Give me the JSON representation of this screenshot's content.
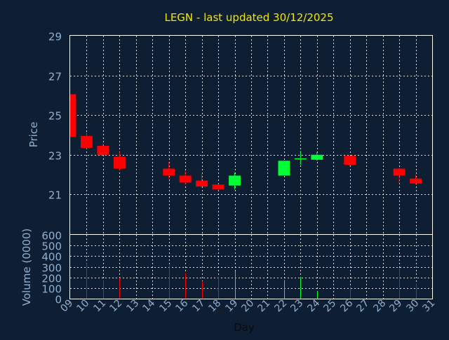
{
  "chart_data": [
    {
      "type": "candlestick",
      "title": "LEGN - last updated 30/12/2025",
      "ylabel": "Price",
      "ylim": [
        19,
        29
      ],
      "y_ticks": [
        21,
        23,
        25,
        27,
        29
      ],
      "grid": true,
      "up_color": "#00ff33",
      "down_color": "#ff0000",
      "candles": [
        {
          "day": 9,
          "open": 26.05,
          "close": 23.9,
          "high": 26.05,
          "low": 23.9
        },
        {
          "day": 10,
          "open": 23.95,
          "close": 23.35,
          "high": 24.15,
          "low": 23.3
        },
        {
          "day": 11,
          "open": 23.45,
          "close": 23.0,
          "high": 23.55,
          "low": 22.95
        },
        {
          "day": 12,
          "open": 22.9,
          "close": 22.3,
          "high": 23.15,
          "low": 22.2
        },
        {
          "day": 15,
          "open": 22.3,
          "close": 21.95,
          "high": 22.65,
          "low": 21.8
        },
        {
          "day": 16,
          "open": 21.95,
          "close": 21.6,
          "high": 22.2,
          "low": 21.5
        },
        {
          "day": 17,
          "open": 21.7,
          "close": 21.4,
          "high": 22.05,
          "low": 21.35
        },
        {
          "day": 18,
          "open": 21.5,
          "close": 21.25,
          "high": 21.55,
          "low": 21.2
        },
        {
          "day": 19,
          "open": 21.45,
          "close": 21.95,
          "high": 22.1,
          "low": 21.25
        },
        {
          "day": 22,
          "open": 21.95,
          "close": 22.7,
          "high": 22.7,
          "low": 21.95
        },
        {
          "day": 23,
          "open": 22.78,
          "close": 22.82,
          "high": 23.2,
          "low": 22.5
        },
        {
          "day": 24,
          "open": 22.75,
          "close": 23.0,
          "high": 23.15,
          "low": 22.7
        },
        {
          "day": 26,
          "open": 22.95,
          "close": 22.5,
          "high": 22.95,
          "low": 22.4
        },
        {
          "day": 29,
          "open": 22.3,
          "close": 21.95,
          "high": 22.35,
          "low": 21.55
        },
        {
          "day": 30,
          "open": 21.8,
          "close": 21.55,
          "high": 22.0,
          "low": 21.5
        }
      ]
    },
    {
      "type": "bar",
      "ylabel": "Volume (0000)",
      "xlabel": "Day",
      "ylim": [
        0,
        600
      ],
      "y_ticks": [
        0,
        100,
        200,
        300,
        400,
        500,
        600
      ],
      "x_ticks": [
        "09",
        "10",
        "11",
        "12",
        "13",
        "14",
        "15",
        "16",
        "17",
        "18",
        "19",
        "20",
        "21",
        "22",
        "23",
        "24",
        "25",
        "26",
        "27",
        "28",
        "29",
        "30",
        "31"
      ],
      "x_range": [
        9,
        31
      ],
      "grid": true,
      "bars": [
        {
          "day": 9,
          "value": 0,
          "direction": "down"
        },
        {
          "day": 10,
          "value": 335,
          "direction": "down"
        },
        {
          "day": 11,
          "value": 175,
          "direction": "down"
        },
        {
          "day": 12,
          "value": 195,
          "direction": "down"
        },
        {
          "day": 15,
          "value": 315,
          "direction": "down"
        },
        {
          "day": 16,
          "value": 240,
          "direction": "down"
        },
        {
          "day": 17,
          "value": 165,
          "direction": "down"
        },
        {
          "day": 18,
          "value": 205,
          "direction": "down"
        },
        {
          "day": 19,
          "value": 260,
          "direction": "up"
        },
        {
          "day": 22,
          "value": 175,
          "direction": "up"
        },
        {
          "day": 23,
          "value": 205,
          "direction": "up"
        },
        {
          "day": 24,
          "value": 70,
          "direction": "up"
        },
        {
          "day": 26,
          "value": 110,
          "direction": "down"
        },
        {
          "day": 29,
          "value": 285,
          "direction": "down"
        },
        {
          "day": 30,
          "value": 140,
          "direction": "down"
        }
      ]
    }
  ]
}
